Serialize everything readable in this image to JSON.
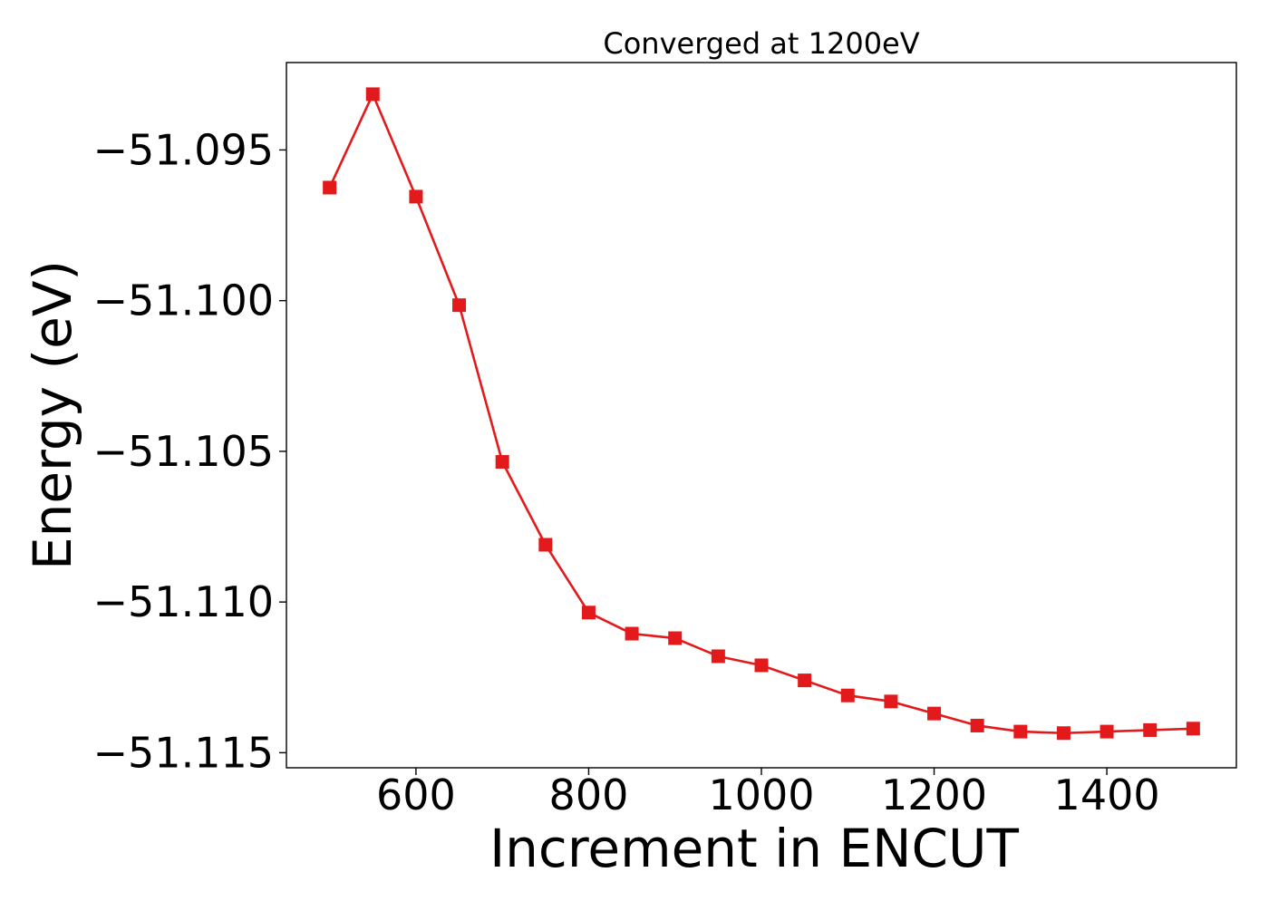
{
  "chart_data": {
    "type": "line",
    "title": "Converged at 1200eV",
    "xlabel": "Increment in ENCUT",
    "ylabel": "Energy (eV)",
    "xlim": [
      450,
      1550
    ],
    "ylim": [
      -51.1155,
      -51.0921
    ],
    "xticks": [
      600,
      800,
      1000,
      1200,
      1400
    ],
    "xtick_labels": [
      "600",
      "800",
      "1000",
      "1200",
      "1400"
    ],
    "yticks": [
      -51.095,
      -51.1,
      -51.105,
      -51.11,
      -51.115
    ],
    "ytick_labels": [
      "−51.095",
      "−51.100",
      "−51.105",
      "−51.110",
      "−51.115"
    ],
    "grid": false,
    "series": [
      {
        "color": "#e31a1c",
        "marker": "square",
        "x": [
          500,
          550,
          600,
          650,
          700,
          750,
          800,
          850,
          900,
          950,
          1000,
          1050,
          1100,
          1150,
          1200,
          1250,
          1300,
          1350,
          1400,
          1450,
          1500
        ],
        "y": [
          -51.09625,
          -51.09315,
          -51.09655,
          -51.10015,
          -51.10535,
          -51.1081,
          -51.11035,
          -51.11105,
          -51.1112,
          -51.1118,
          -51.1121,
          -51.1126,
          -51.1131,
          -51.1133,
          -51.1137,
          -51.1141,
          -51.1143,
          -51.11435,
          -51.1143,
          -51.11425,
          -51.1142
        ]
      }
    ]
  }
}
